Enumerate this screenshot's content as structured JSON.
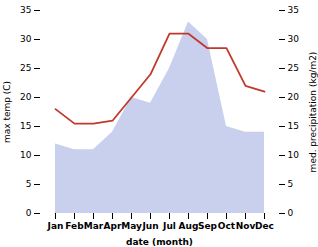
{
  "chart_data": {
    "type": "area",
    "categories": [
      "Jan",
      "Feb",
      "Mar",
      "Apr",
      "May",
      "Jun",
      "Jul",
      "Aug",
      "Sep",
      "Oct",
      "Nov",
      "Dec"
    ],
    "series": [
      {
        "type": "area",
        "color": "#c8d0ed",
        "values": [
          12,
          11,
          11,
          14,
          20,
          19,
          25,
          33,
          30,
          15,
          14,
          14
        ]
      },
      {
        "type": "line",
        "axis": "y2",
        "color": "#c0392b",
        "values": [
          18,
          15.5,
          15.5,
          16,
          20,
          24,
          31,
          31,
          28.5,
          28.5,
          22,
          21
        ]
      }
    ],
    "xlabel": "date (month)",
    "ylabel": "max temp (C)",
    "y2label": "med. precipitation (kg/m2)",
    "ylim": [
      0,
      35
    ],
    "yticks": [
      0,
      5,
      10,
      15,
      20,
      25,
      30,
      35
    ],
    "y2lim": [
      0,
      35
    ],
    "y2ticks": [
      0,
      5,
      10,
      15,
      20,
      25,
      30,
      35
    ],
    "grid": false
  }
}
